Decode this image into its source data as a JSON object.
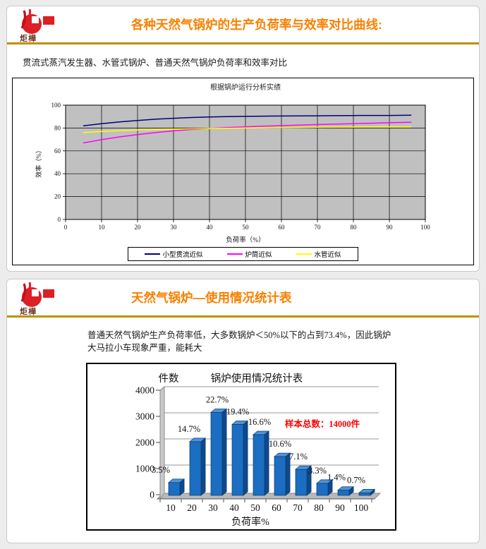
{
  "logo": {
    "text": "炬樺"
  },
  "slide1": {
    "title": "各种天然气锅炉的生产负荷率与效率对比曲线:",
    "subtitle": "贯流式蒸汽发生器、水管式锅炉、普通天然气锅炉负荷率和效率对比"
  },
  "slide2": {
    "title": "天然气锅炉—使用情况统计表",
    "body": "普通天然气锅炉生产负荷率低，大多数锅炉＜50%以下的占到73.4%，因此锅炉大马拉小车现象严重，能耗大"
  },
  "colors": {
    "accent_orange": "#f88000",
    "divider_gold": "#bf9000",
    "plot_gray": "#c0c0c0",
    "bar_blue": "#1b6ec2",
    "annotation_red": "#ff0000"
  },
  "chart_data": [
    {
      "type": "line",
      "title": "根据锅炉运行分析实绩",
      "xlabel": "负荷率（%）",
      "ylabel": "效率（%）",
      "xlim": [
        0,
        100
      ],
      "ylim": [
        0,
        100
      ],
      "xticks": [
        0,
        10,
        20,
        30,
        40,
        50,
        60,
        70,
        80,
        90,
        100
      ],
      "yticks": [
        0,
        20,
        40,
        60,
        80,
        100
      ],
      "grid": true,
      "plot_bg": "#c0c0c0",
      "legend_position": "bottom",
      "series": [
        {
          "name": "小型贯流近似",
          "color": "#000080",
          "points": [
            [
              5,
              82
            ],
            [
              10,
              83.8
            ],
            [
              15,
              85.3
            ],
            [
              20,
              86.6
            ],
            [
              25,
              87.7
            ],
            [
              30,
              88.5
            ],
            [
              35,
              89.2
            ],
            [
              40,
              89.7
            ],
            [
              45,
              90
            ],
            [
              50,
              90.2
            ],
            [
              55,
              90.4
            ],
            [
              60,
              90.5
            ],
            [
              65,
              90.6
            ],
            [
              70,
              90.7
            ],
            [
              75,
              90.8
            ],
            [
              80,
              90.9
            ],
            [
              85,
              91
            ],
            [
              90,
              91
            ],
            [
              96,
              91.2
            ]
          ]
        },
        {
          "name": "炉筒近似",
          "color": "#ff00ff",
          "points": [
            [
              5,
              67
            ],
            [
              10,
              69.8
            ],
            [
              15,
              72.2
            ],
            [
              20,
              74.2
            ],
            [
              25,
              76
            ],
            [
              30,
              77.5
            ],
            [
              35,
              78.7
            ],
            [
              40,
              79.7
            ],
            [
              45,
              80.4
            ],
            [
              50,
              81
            ],
            [
              55,
              81.6
            ],
            [
              60,
              82.1
            ],
            [
              65,
              82.6
            ],
            [
              70,
              83
            ],
            [
              75,
              83.4
            ],
            [
              80,
              83.8
            ],
            [
              85,
              84.2
            ],
            [
              90,
              84.6
            ],
            [
              96,
              85
            ]
          ]
        },
        {
          "name": "水管近似",
          "color": "#ffff00",
          "points": [
            [
              5,
              76
            ],
            [
              10,
              77
            ],
            [
              15,
              77.7
            ],
            [
              20,
              78.2
            ],
            [
              25,
              78.6
            ],
            [
              30,
              79
            ],
            [
              35,
              79.3
            ],
            [
              40,
              79.6
            ],
            [
              45,
              79.8
            ],
            [
              50,
              80
            ],
            [
              55,
              80.2
            ],
            [
              60,
              80.3
            ],
            [
              65,
              80.5
            ],
            [
              70,
              80.6
            ],
            [
              75,
              80.7
            ],
            [
              80,
              80.8
            ],
            [
              85,
              80.9
            ],
            [
              90,
              80.9
            ],
            [
              96,
              81
            ]
          ]
        }
      ]
    },
    {
      "type": "bar",
      "title": "锅炉使用情况统计表",
      "ylabel": "件数",
      "xlabel": "负荷率%",
      "categories": [
        "10",
        "20",
        "30",
        "40",
        "50",
        "60",
        "70",
        "80",
        "90",
        "100"
      ],
      "values": [
        490,
        2058,
        3178,
        2716,
        2324,
        1484,
        994,
        462,
        196,
        98
      ],
      "labels": [
        "3.5%",
        "14.7%",
        "22.7%",
        "19.4%",
        "16.6%",
        "10.6%",
        "7.1%",
        "3.3%",
        "1.4%",
        "0.7%"
      ],
      "ylim": [
        0,
        4000
      ],
      "yticks": [
        0,
        1000,
        2000,
        3000,
        4000
      ],
      "bar_color": "#1b6ec2",
      "annotation": {
        "text": "样本总数：14000件",
        "color": "#ff0000"
      }
    }
  ]
}
